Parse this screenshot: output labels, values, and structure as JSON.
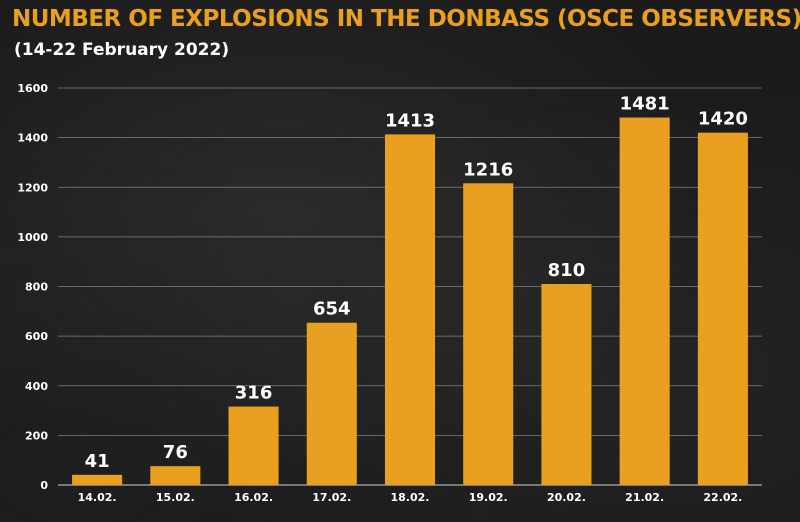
{
  "title": "NUMBER OF EXPLOSIONS IN THE DONBASS (OSCE OBSERVERS)",
  "subtitle": "(14-22 February 2022)",
  "colors": {
    "bar": "#e8a01e",
    "title": "#e8a01e",
    "text": "#ffffff",
    "grid": "#bfbfbf",
    "background": "#1b1b1b"
  },
  "chart_data": {
    "type": "bar",
    "categories": [
      "14.02.",
      "15.02.",
      "16.02.",
      "17.02.",
      "18.02.",
      "19.02.",
      "20.02.",
      "21.02.",
      "22.02."
    ],
    "values": [
      41,
      76,
      316,
      654,
      1413,
      1216,
      810,
      1481,
      1420
    ],
    "title": "NUMBER OF EXPLOSIONS IN THE DONBASS (OSCE OBSERVERS)",
    "subtitle": "(14-22 February 2022)",
    "xlabel": "",
    "ylabel": "",
    "ylim": [
      0,
      1600
    ],
    "yticks": [
      0,
      200,
      400,
      600,
      800,
      1000,
      1200,
      1400,
      1600
    ],
    "grid": true,
    "data_labels": true,
    "legend": "none"
  }
}
